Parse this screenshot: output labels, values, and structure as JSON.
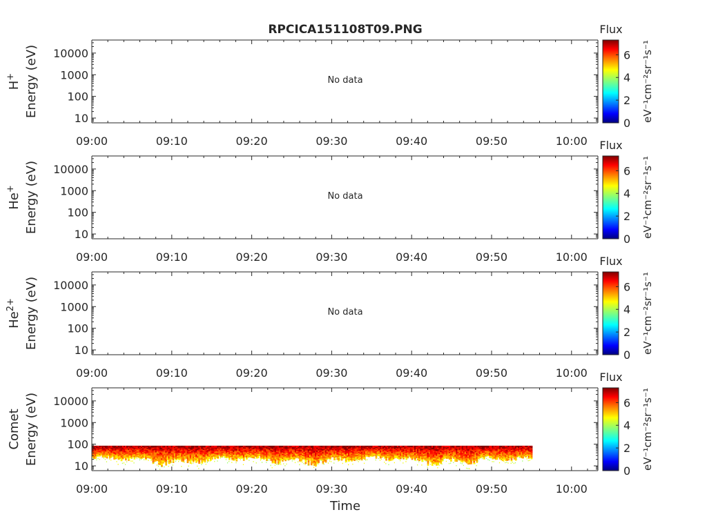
{
  "title": "RPCICA151108T09.PNG",
  "colorbar_label": "Flux",
  "colorbar_unit": "eV⁻¹cm⁻²sr⁻¹s⁻¹",
  "colorbar_ticks": [
    "0",
    "2",
    "4",
    "6"
  ],
  "colorbar_range": [
    0,
    7.3
  ],
  "colormap": [
    "#00007f",
    "#0000ff",
    "#007fff",
    "#00ffff",
    "#7fff7f",
    "#ffff00",
    "#ff7f00",
    "#ff0000",
    "#7f0000"
  ],
  "x_ticks": [
    "09:00",
    "09:10",
    "09:20",
    "09:30",
    "09:40",
    "09:50",
    "10:00"
  ],
  "x_range_minutes": [
    0,
    63.3
  ],
  "y_ticks": [
    "10",
    "100",
    "1000",
    "10000"
  ],
  "y_range_eV": [
    6,
    40000
  ],
  "xlabel": "Time",
  "no_data_text": "No data",
  "chart_data": [
    {
      "type": "heatmap",
      "species": "H",
      "charge": "+",
      "ylabel": "Energy (eV)",
      "has_data": false
    },
    {
      "type": "heatmap",
      "species": "He",
      "charge": "+",
      "ylabel": "Energy (eV)",
      "has_data": false
    },
    {
      "type": "heatmap",
      "species": "He",
      "charge": "2+",
      "ylabel": "Energy (eV)",
      "has_data": false
    },
    {
      "type": "heatmap",
      "species": "Comet",
      "charge": "",
      "ylabel": "Energy (eV)",
      "has_data": true,
      "data_start": "09:00",
      "data_end": "09:55",
      "energy_range_eV": [
        6,
        85
      ],
      "peak_energy_eV": [
        40,
        85
      ],
      "flux_range": [
        4,
        7
      ]
    }
  ]
}
